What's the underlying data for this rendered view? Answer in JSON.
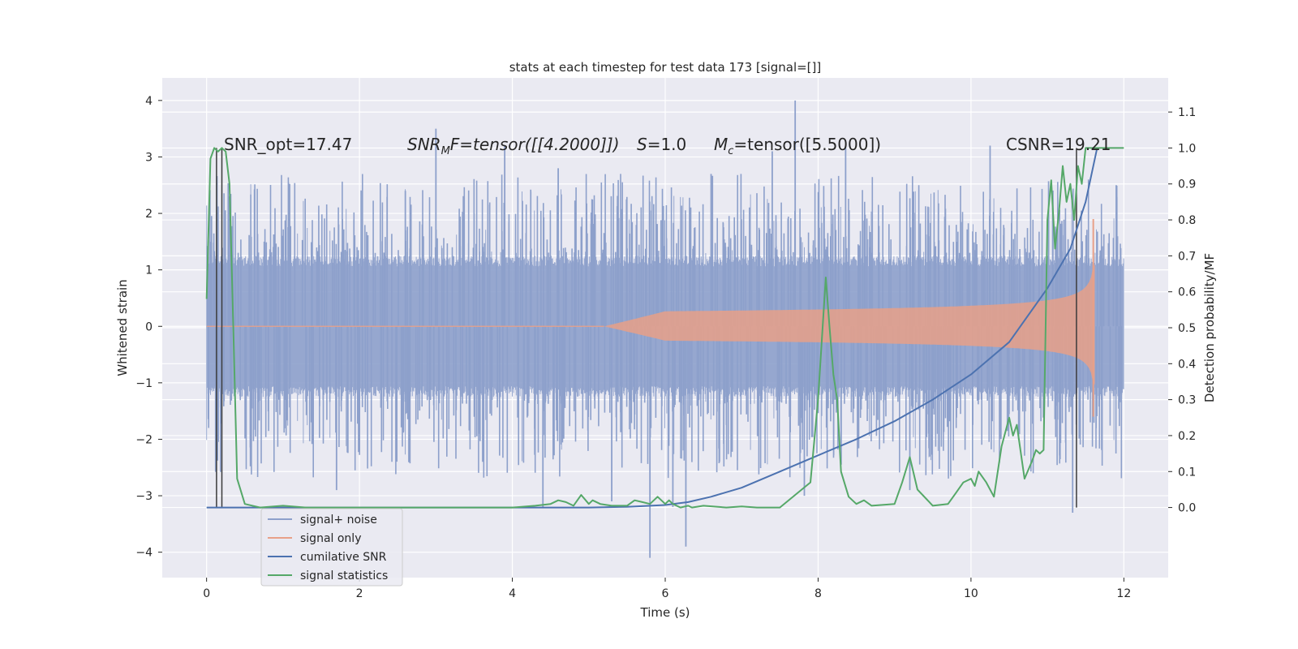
{
  "chart_data": {
    "type": "line",
    "title": "stats at each timestep for test data 173 [signal=[]]",
    "xlabel": "Time (s)",
    "ylabel_left": "Whitened strain",
    "ylabel_right": "Detection probability/MF",
    "xlim": [
      -0.58,
      12.58
    ],
    "ylim_left": [
      -4.45,
      4.4
    ],
    "ylim_right": [
      -0.195,
      1.195
    ],
    "x_ticks": [
      0,
      2,
      4,
      6,
      8,
      10,
      12
    ],
    "x_tick_labels": [
      "0",
      "2",
      "4",
      "6",
      "8",
      "10",
      "12"
    ],
    "y_left_ticks": [
      -4,
      -3,
      -2,
      -1,
      0,
      1,
      2,
      3,
      4
    ],
    "y_left_tick_labels": [
      "−4",
      "−3",
      "−2",
      "−1",
      "0",
      "1",
      "2",
      "3",
      "4"
    ],
    "y_right_ticks": [
      0.0,
      0.1,
      0.2,
      0.3,
      0.4,
      0.5,
      0.6,
      0.7,
      0.8,
      0.9,
      1.0,
      1.1
    ],
    "y_right_tick_labels": [
      "0.0",
      "0.1",
      "0.2",
      "0.3",
      "0.4",
      "0.5",
      "0.6",
      "0.7",
      "0.8",
      "0.9",
      "1.0",
      "1.1"
    ],
    "grid": true,
    "legend_position": "lower-left",
    "annotations": {
      "snr_opt": "SNR_opt=17.47",
      "snr_mf_base": "SNR",
      "snr_mf_sub": "M",
      "snr_mf_tail": "F=tensor([[4.2000]])",
      "s_italic": "S",
      "s_value": "=1.0",
      "mc_base": "M",
      "mc_sub": "c",
      "mc_value": "=tensor([5.5000])",
      "csnr": "CSNR=19.21"
    },
    "vertical_markers": [
      0.13,
      0.2,
      11.38
    ],
    "series": [
      {
        "name": "signal+ noise",
        "axis": "left",
        "color": "#8da0cb",
        "style": "noise",
        "x_range": [
          0,
          12
        ],
        "envelope": 1.25,
        "peaks": [
          [
            0.05,
            1.5
          ],
          [
            0.3,
            2.3
          ],
          [
            1.7,
            -2.9
          ],
          [
            2.6,
            2.4
          ],
          [
            3.0,
            3.5
          ],
          [
            3.9,
            3.2
          ],
          [
            4.4,
            -3.2
          ],
          [
            4.6,
            2.8
          ],
          [
            5.3,
            -3.1
          ],
          [
            5.8,
            -4.1
          ],
          [
            6.1,
            -3.2
          ],
          [
            6.27,
            -3.9
          ],
          [
            6.6,
            2.7
          ],
          [
            7.4,
            3.1
          ],
          [
            7.7,
            4.0
          ],
          [
            7.82,
            -3.0
          ],
          [
            8.36,
            3.2
          ],
          [
            9.2,
            -2.9
          ],
          [
            10.25,
            3.2
          ],
          [
            11.33,
            -3.3
          ],
          [
            11.9,
            2.5
          ]
        ]
      },
      {
        "name": "signal only",
        "axis": "left",
        "color": "#e8a088",
        "style": "chirp",
        "x_range": [
          5.2,
          11.62
        ],
        "amplitude_at_end": 0.6,
        "spike": [
          11.6,
          1.9
        ]
      },
      {
        "name": "cumilative SNR",
        "axis": "right",
        "color": "#4c72b0",
        "x": [
          0,
          0.5,
          1,
          2,
          3,
          4,
          5,
          5.5,
          6,
          6.3,
          6.6,
          7,
          7.5,
          8,
          8.5,
          9,
          9.5,
          10,
          10.5,
          11,
          11.3,
          11.5,
          11.65
        ],
        "values": [
          0,
          0,
          0,
          0,
          0,
          0,
          0,
          0.002,
          0.007,
          0.015,
          0.03,
          0.055,
          0.1,
          0.145,
          0.19,
          0.24,
          0.3,
          0.37,
          0.46,
          0.61,
          0.72,
          0.85,
          1.0
        ]
      },
      {
        "name": "signal statistics",
        "axis": "right",
        "color": "#55a868",
        "x": [
          0,
          0.05,
          0.1,
          0.15,
          0.2,
          0.25,
          0.3,
          0.35,
          0.4,
          0.5,
          0.7,
          1.0,
          1.3,
          2,
          3,
          4,
          4.3,
          4.5,
          4.6,
          4.7,
          4.8,
          4.9,
          5.0,
          5.05,
          5.15,
          5.3,
          5.5,
          5.6,
          5.7,
          5.8,
          5.9,
          6.0,
          6.05,
          6.1,
          6.2,
          6.3,
          6.35,
          6.5,
          6.8,
          7.0,
          7.2,
          7.5,
          7.9,
          8.0,
          8.1,
          8.15,
          8.2,
          8.25,
          8.3,
          8.4,
          8.5,
          8.6,
          8.7,
          9.0,
          9.1,
          9.2,
          9.3,
          9.5,
          9.7,
          9.8,
          9.9,
          10.0,
          10.05,
          10.1,
          10.2,
          10.3,
          10.4,
          10.5,
          10.55,
          10.6,
          10.7,
          10.8,
          10.85,
          10.9,
          10.95,
          11.0,
          11.05,
          11.1,
          11.15,
          11.2,
          11.25,
          11.3,
          11.35,
          11.4,
          11.45,
          11.5,
          11.6,
          11.7,
          12.0
        ],
        "values": [
          0.58,
          0.97,
          1.0,
          0.99,
          1.0,
          0.99,
          0.9,
          0.5,
          0.08,
          0.01,
          0.0,
          0.005,
          0.0,
          0.0,
          0.0,
          0.0,
          0.005,
          0.01,
          0.02,
          0.015,
          0.005,
          0.035,
          0.01,
          0.02,
          0.01,
          0.005,
          0.005,
          0.02,
          0.015,
          0.01,
          0.03,
          0.01,
          0.02,
          0.01,
          0.0,
          0.005,
          0.0,
          0.005,
          0.0,
          0.003,
          0.0,
          0.0,
          0.07,
          0.3,
          0.64,
          0.5,
          0.37,
          0.3,
          0.1,
          0.03,
          0.01,
          0.02,
          0.005,
          0.01,
          0.07,
          0.14,
          0.05,
          0.005,
          0.01,
          0.04,
          0.07,
          0.08,
          0.06,
          0.1,
          0.07,
          0.03,
          0.17,
          0.25,
          0.2,
          0.23,
          0.08,
          0.13,
          0.16,
          0.15,
          0.16,
          0.8,
          0.91,
          0.72,
          0.82,
          0.95,
          0.85,
          0.9,
          0.8,
          0.95,
          0.9,
          1.0,
          1.0,
          1.0,
          1.0
        ]
      }
    ]
  }
}
